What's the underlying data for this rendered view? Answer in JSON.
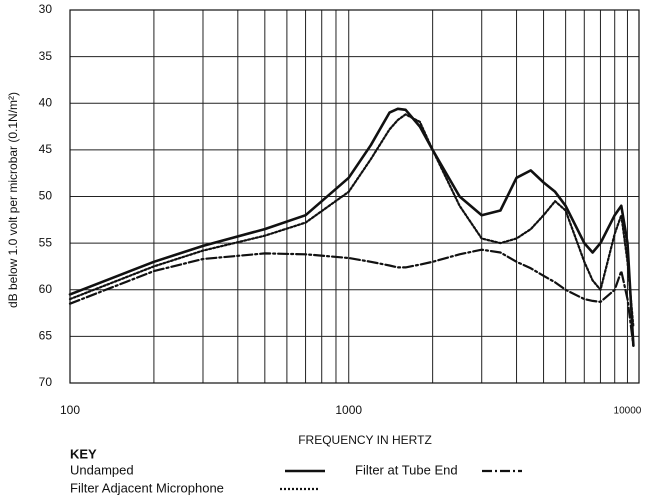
{
  "chart_data": {
    "type": "line",
    "x_label": "FREQUENCY IN HERTZ",
    "y_label": "dB below 1.0 volt per microbar (0.1N/m²)",
    "legend_title": "KEY",
    "x_log": true,
    "y_inverted": true,
    "grid": true,
    "xlim": [
      100,
      11000
    ],
    "ylim": [
      70,
      30
    ],
    "xticks": [
      100,
      1000,
      10000
    ],
    "xminor": [
      200,
      300,
      400,
      500,
      600,
      700,
      800,
      900,
      2000,
      3000,
      4000,
      5000,
      6000,
      7000,
      8000,
      9000
    ],
    "yticks": [
      30,
      35,
      40,
      45,
      50,
      55,
      60,
      65,
      70
    ],
    "x": [
      100,
      200,
      300,
      500,
      700,
      1000,
      1200,
      1400,
      1500,
      1600,
      1800,
      2000,
      2500,
      3000,
      3500,
      4000,
      4500,
      5000,
      5500,
      6000,
      7000,
      7500,
      8000,
      9000,
      9500,
      10000,
      10500
    ],
    "series": [
      {
        "name": "Undamped",
        "color": "#111111",
        "dash": "solid",
        "values": [
          60.5,
          57,
          55.3,
          53.5,
          52,
          48,
          44.5,
          41,
          40.6,
          40.7,
          42.5,
          45,
          50,
          52,
          51.5,
          48,
          47.2,
          48.5,
          49.5,
          51,
          55,
          56,
          55,
          52,
          51,
          55,
          66
        ]
      },
      {
        "name": "Filter Adjacent Microphone",
        "color": "#111111",
        "dash": "dotted",
        "values": [
          61,
          57.5,
          55.8,
          54.2,
          52.8,
          49.5,
          46,
          42.8,
          41.8,
          41.2,
          42,
          45,
          51,
          54.5,
          55,
          54.5,
          53.5,
          52,
          50.5,
          51.5,
          57,
          59,
          60,
          54,
          52,
          57,
          64
        ]
      },
      {
        "name": "Filter at Tube End",
        "color": "#111111",
        "dash": "dashdot",
        "values": [
          61.5,
          58,
          56.7,
          56.1,
          56.2,
          56.6,
          57,
          57.4,
          57.6,
          57.6,
          57.3,
          57,
          56.2,
          55.7,
          56,
          57,
          57.7,
          58.5,
          59.2,
          60,
          61,
          61.2,
          61.3,
          60,
          58,
          61,
          66
        ]
      }
    ]
  }
}
